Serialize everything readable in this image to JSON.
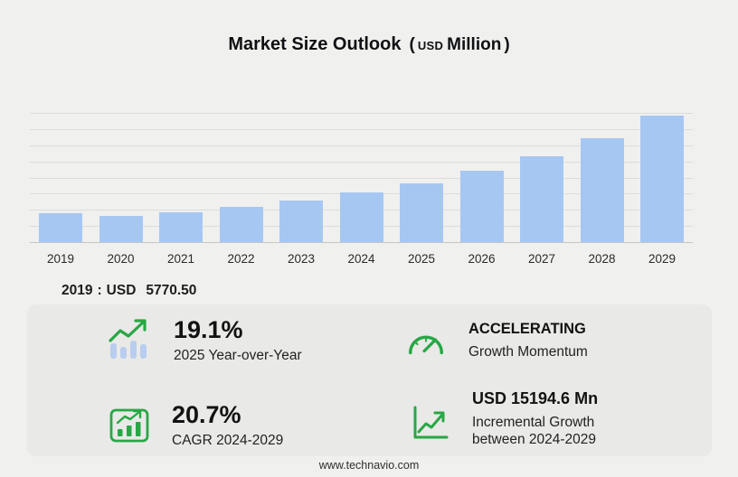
{
  "title": {
    "main": "Market Size Outlook",
    "open_paren": "(",
    "currency": "USD",
    "unit": "Million",
    "close_paren": ")"
  },
  "chart_data": {
    "type": "bar",
    "title": "Market Size Outlook (USD Million)",
    "categories": [
      "2019",
      "2020",
      "2021",
      "2022",
      "2023",
      "2024",
      "2025",
      "2026",
      "2027",
      "2028",
      "2029"
    ],
    "values": [
      5770.5,
      5210,
      5960,
      6890,
      8190,
      9724.3,
      11581.6,
      14014,
      16952,
      20563,
      24918.9
    ],
    "xlabel": "",
    "ylabel": "",
    "ylim": [
      0,
      25500
    ],
    "grid": "horizontal",
    "legend": "none",
    "bar_color": "#a7c7f3",
    "annotation": "2019 : USD 5770.50"
  },
  "baseline": {
    "year": "2019",
    "separator": ":",
    "currency": "USD",
    "value": "5770.50"
  },
  "stats": {
    "yoy": {
      "value": "19.1%",
      "label": "2025 Year-over-Year"
    },
    "momentum": {
      "value": "ACCELERATING",
      "label": "Growth Momentum"
    },
    "cagr": {
      "value": "20.7%",
      "label": "CAGR 2024-2029"
    },
    "incremental": {
      "value": "USD 15194.6 Mn",
      "label_line1": "Incremental Growth",
      "label_line2": "between 2024-2029"
    }
  },
  "footer": {
    "url": "www.technavio.com"
  },
  "colors": {
    "background": "#f0f0ee",
    "panel": "#e9e9e7",
    "bar": "#a7c7f3",
    "grid": "#dcdcda",
    "accent_green": "#28a745",
    "text": "#1b1b1b"
  },
  "icons": {
    "yoy": "bar-chart-trend-up-icon",
    "momentum": "speedometer-icon",
    "cagr": "boxed-growth-chart-icon",
    "incremental": "line-graph-arrow-icon"
  }
}
